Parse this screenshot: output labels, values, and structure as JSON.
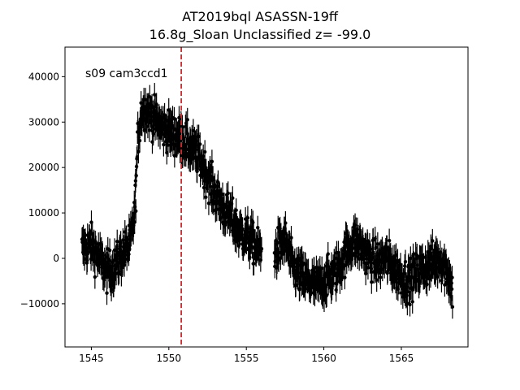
{
  "chart_data": {
    "type": "scatter",
    "title": "AT2019bql  ASASSN-19ff",
    "subtitle": "16.8g_Sloan Unclassified z= -99.0",
    "xlabel": "",
    "ylabel": "",
    "xlim": [
      1543.3,
      1569.3
    ],
    "ylim": [
      -19500,
      46500
    ],
    "xticks": [
      1545,
      1550,
      1555,
      1560,
      1565
    ],
    "yticks": [
      -10000,
      0,
      10000,
      20000,
      30000,
      40000
    ],
    "annotation": "s09 cam3ccd1",
    "vline": {
      "x": 1550.8,
      "color": "#d62728",
      "style": "dashed"
    },
    "grid": false,
    "legend": "none",
    "marker_color": "#000000",
    "series": [
      {
        "x_start": 1544.4,
        "x_end": 1568.3,
        "cadence": 0.0208,
        "error": 2600,
        "knots": [
          [
            1544.4,
            2000
          ],
          [
            1545.0,
            3000
          ],
          [
            1545.5,
            0
          ],
          [
            1546.0,
            -3000
          ],
          [
            1546.5,
            -2000
          ],
          [
            1547.0,
            1000
          ],
          [
            1547.5,
            3000
          ],
          [
            1547.8,
            10000
          ],
          [
            1548.0,
            26000
          ],
          [
            1548.2,
            32000
          ],
          [
            1548.5,
            33000
          ],
          [
            1549.0,
            31000
          ],
          [
            1549.5,
            29000
          ],
          [
            1550.0,
            28000
          ],
          [
            1550.5,
            27000
          ],
          [
            1551.0,
            26000
          ],
          [
            1551.5,
            24000
          ],
          [
            1552.0,
            22000
          ],
          [
            1552.5,
            18000
          ],
          [
            1553.0,
            14000
          ],
          [
            1553.5,
            11000
          ],
          [
            1554.0,
            9000
          ],
          [
            1554.5,
            6000
          ],
          [
            1555.0,
            5000
          ],
          [
            1555.5,
            3000
          ],
          [
            1556.0,
            1000
          ],
          [
            1556.5,
            0
          ],
          [
            1557.0,
            2000
          ],
          [
            1557.5,
            4000
          ],
          [
            1558.0,
            -2000
          ],
          [
            1558.5,
            -4000
          ],
          [
            1559.0,
            -5000
          ],
          [
            1559.5,
            -6000
          ],
          [
            1560.0,
            -5000
          ],
          [
            1560.5,
            -4000
          ],
          [
            1561.0,
            -2000
          ],
          [
            1561.5,
            2000
          ],
          [
            1562.0,
            4000
          ],
          [
            1562.5,
            2000
          ],
          [
            1563.0,
            0
          ],
          [
            1563.5,
            -1000
          ],
          [
            1564.0,
            0
          ],
          [
            1564.5,
            -2000
          ],
          [
            1565.0,
            -4000
          ],
          [
            1565.5,
            -5000
          ],
          [
            1566.0,
            -3000
          ],
          [
            1566.5,
            -2000
          ],
          [
            1567.0,
            -1000
          ],
          [
            1567.5,
            0
          ],
          [
            1568.0,
            -3000
          ],
          [
            1568.3,
            -7000
          ]
        ]
      }
    ]
  }
}
